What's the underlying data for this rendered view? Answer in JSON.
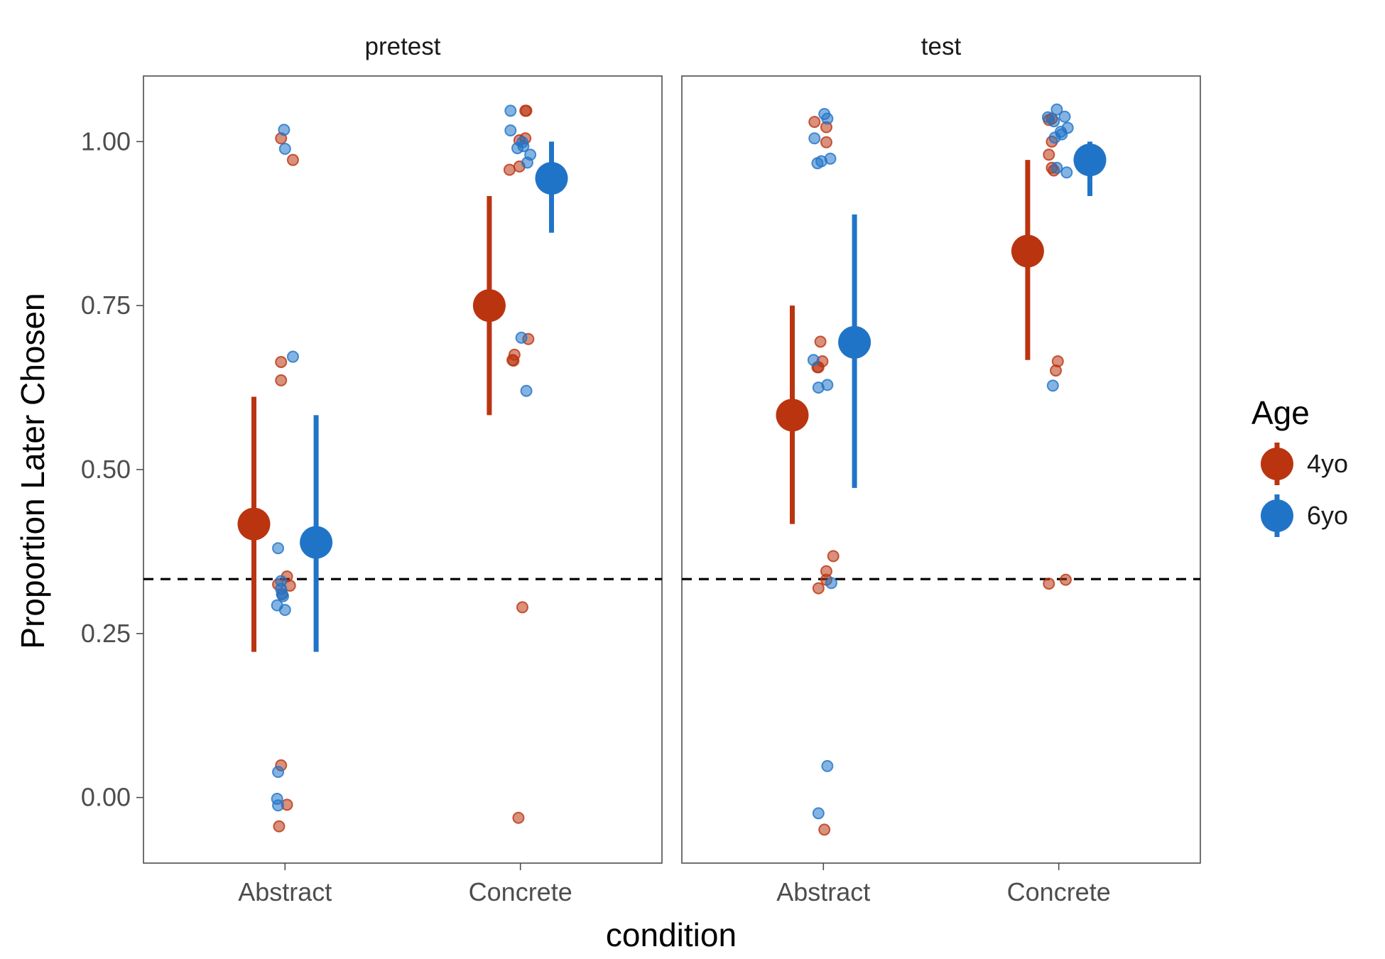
{
  "chart_data": {
    "type": "scatter",
    "xlabel": "condition",
    "ylabel": "Proportion Later Chosen",
    "ylim": [
      -0.1,
      1.1
    ],
    "y_ticks": [
      "0.00",
      "0.25",
      "0.50",
      "0.75",
      "1.00"
    ],
    "categories": [
      "Abstract",
      "Concrete"
    ],
    "facets": [
      "pretest",
      "test"
    ],
    "reference_line": {
      "y": 0.333,
      "style": "dashed"
    },
    "legend": {
      "title": "Age",
      "position": "right"
    },
    "grid": false,
    "series": [
      {
        "name": "4yo",
        "color": "#BA3410",
        "summary": [
          {
            "facet": "pretest",
            "condition": "Abstract",
            "mean": 0.417,
            "lo": 0.222,
            "hi": 0.611
          },
          {
            "facet": "pretest",
            "condition": "Concrete",
            "mean": 0.75,
            "lo": 0.583,
            "hi": 0.917
          },
          {
            "facet": "test",
            "condition": "Abstract",
            "mean": 0.583,
            "lo": 0.417,
            "hi": 0.75
          },
          {
            "facet": "test",
            "condition": "Concrete",
            "mean": 0.833,
            "lo": 0.667,
            "hi": 0.972
          }
        ],
        "points": [
          {
            "facet": "pretest",
            "condition": "Abstract",
            "jitter": -0.04,
            "y": 1.005
          },
          {
            "facet": "pretest",
            "condition": "Abstract",
            "jitter": 0.08,
            "y": 0.972
          },
          {
            "facet": "pretest",
            "condition": "Abstract",
            "jitter": -0.04,
            "y": 0.664
          },
          {
            "facet": "pretest",
            "condition": "Abstract",
            "jitter": -0.04,
            "y": 0.636
          },
          {
            "facet": "pretest",
            "condition": "Abstract",
            "jitter": 0.02,
            "y": 0.337
          },
          {
            "facet": "pretest",
            "condition": "Abstract",
            "jitter": -0.07,
            "y": 0.325
          },
          {
            "facet": "pretest",
            "condition": "Abstract",
            "jitter": 0.05,
            "y": 0.323
          },
          {
            "facet": "pretest",
            "condition": "Abstract",
            "jitter": -0.03,
            "y": 0.31
          },
          {
            "facet": "pretest",
            "condition": "Abstract",
            "jitter": -0.04,
            "y": 0.049
          },
          {
            "facet": "pretest",
            "condition": "Abstract",
            "jitter": 0.02,
            "y": -0.011
          },
          {
            "facet": "pretest",
            "condition": "Abstract",
            "jitter": -0.06,
            "y": -0.044
          },
          {
            "facet": "pretest",
            "condition": "Concrete",
            "jitter": 0.06,
            "y": 1.047
          },
          {
            "facet": "pretest",
            "condition": "Concrete",
            "jitter": 0.05,
            "y": 1.047
          },
          {
            "facet": "pretest",
            "condition": "Concrete",
            "jitter": 0.05,
            "y": 1.005
          },
          {
            "facet": "pretest",
            "condition": "Concrete",
            "jitter": -0.01,
            "y": 1.002
          },
          {
            "facet": "pretest",
            "condition": "Concrete",
            "jitter": -0.01,
            "y": 0.962
          },
          {
            "facet": "pretest",
            "condition": "Concrete",
            "jitter": -0.11,
            "y": 0.957
          },
          {
            "facet": "pretest",
            "condition": "Concrete",
            "jitter": 0.08,
            "y": 0.699
          },
          {
            "facet": "pretest",
            "condition": "Concrete",
            "jitter": -0.06,
            "y": 0.675
          },
          {
            "facet": "pretest",
            "condition": "Concrete",
            "jitter": -0.08,
            "y": 0.667
          },
          {
            "facet": "pretest",
            "condition": "Concrete",
            "jitter": -0.07,
            "y": 0.666
          },
          {
            "facet": "pretest",
            "condition": "Concrete",
            "jitter": 0.02,
            "y": 0.29
          },
          {
            "facet": "pretest",
            "condition": "Concrete",
            "jitter": -0.02,
            "y": -0.031
          },
          {
            "facet": "test",
            "condition": "Abstract",
            "jitter": -0.09,
            "y": 1.03
          },
          {
            "facet": "test",
            "condition": "Abstract",
            "jitter": 0.03,
            "y": 1.022
          },
          {
            "facet": "test",
            "condition": "Abstract",
            "jitter": 0.03,
            "y": 0.999
          },
          {
            "facet": "test",
            "condition": "Abstract",
            "jitter": -0.03,
            "y": 0.695
          },
          {
            "facet": "test",
            "condition": "Abstract",
            "jitter": -0.01,
            "y": 0.665
          },
          {
            "facet": "test",
            "condition": "Abstract",
            "jitter": -0.06,
            "y": 0.656
          },
          {
            "facet": "test",
            "condition": "Abstract",
            "jitter": -0.05,
            "y": 0.656
          },
          {
            "facet": "test",
            "condition": "Abstract",
            "jitter": 0.1,
            "y": 0.368
          },
          {
            "facet": "test",
            "condition": "Abstract",
            "jitter": 0.03,
            "y": 0.345
          },
          {
            "facet": "test",
            "condition": "Abstract",
            "jitter": 0.03,
            "y": 0.332
          },
          {
            "facet": "test",
            "condition": "Abstract",
            "jitter": -0.05,
            "y": 0.319
          },
          {
            "facet": "test",
            "condition": "Abstract",
            "jitter": 0.01,
            "y": -0.049
          },
          {
            "facet": "test",
            "condition": "Concrete",
            "jitter": -0.07,
            "y": 1.035
          },
          {
            "facet": "test",
            "condition": "Concrete",
            "jitter": -0.1,
            "y": 1.033
          },
          {
            "facet": "test",
            "condition": "Concrete",
            "jitter": -0.07,
            "y": 1.0
          },
          {
            "facet": "test",
            "condition": "Concrete",
            "jitter": -0.1,
            "y": 0.98
          },
          {
            "facet": "test",
            "condition": "Concrete",
            "jitter": -0.07,
            "y": 0.96
          },
          {
            "facet": "test",
            "condition": "Concrete",
            "jitter": -0.05,
            "y": 0.956
          },
          {
            "facet": "test",
            "condition": "Concrete",
            "jitter": -0.01,
            "y": 0.665
          },
          {
            "facet": "test",
            "condition": "Concrete",
            "jitter": -0.03,
            "y": 0.651
          },
          {
            "facet": "test",
            "condition": "Concrete",
            "jitter": -0.1,
            "y": 0.326
          },
          {
            "facet": "test",
            "condition": "Concrete",
            "jitter": 0.07,
            "y": 0.332
          }
        ]
      },
      {
        "name": "6yo",
        "color": "#2074C8",
        "summary": [
          {
            "facet": "pretest",
            "condition": "Abstract",
            "mean": 0.389,
            "lo": 0.222,
            "hi": 0.583
          },
          {
            "facet": "pretest",
            "condition": "Concrete",
            "mean": 0.944,
            "lo": 0.861,
            "hi": 1.0
          },
          {
            "facet": "test",
            "condition": "Abstract",
            "mean": 0.694,
            "lo": 0.472,
            "hi": 0.889
          },
          {
            "facet": "test",
            "condition": "Concrete",
            "mean": 0.972,
            "lo": 0.917,
            "hi": 1.0
          }
        ],
        "points": [
          {
            "facet": "pretest",
            "condition": "Abstract",
            "jitter": -0.01,
            "y": 1.018
          },
          {
            "facet": "pretest",
            "condition": "Abstract",
            "jitter": 0.0,
            "y": 0.989
          },
          {
            "facet": "pretest",
            "condition": "Abstract",
            "jitter": 0.08,
            "y": 0.672
          },
          {
            "facet": "pretest",
            "condition": "Abstract",
            "jitter": -0.07,
            "y": 0.38
          },
          {
            "facet": "pretest",
            "condition": "Abstract",
            "jitter": -0.04,
            "y": 0.33
          },
          {
            "facet": "pretest",
            "condition": "Abstract",
            "jitter": -0.04,
            "y": 0.318
          },
          {
            "facet": "pretest",
            "condition": "Abstract",
            "jitter": -0.03,
            "y": 0.31
          },
          {
            "facet": "pretest",
            "condition": "Abstract",
            "jitter": -0.02,
            "y": 0.307
          },
          {
            "facet": "pretest",
            "condition": "Abstract",
            "jitter": -0.08,
            "y": 0.293
          },
          {
            "facet": "pretest",
            "condition": "Abstract",
            "jitter": 0.0,
            "y": 0.286
          },
          {
            "facet": "pretest",
            "condition": "Abstract",
            "jitter": -0.07,
            "y": 0.039
          },
          {
            "facet": "pretest",
            "condition": "Abstract",
            "jitter": -0.08,
            "y": -0.002
          },
          {
            "facet": "pretest",
            "condition": "Abstract",
            "jitter": -0.07,
            "y": -0.012
          },
          {
            "facet": "pretest",
            "condition": "Concrete",
            "jitter": -0.1,
            "y": 1.047
          },
          {
            "facet": "pretest",
            "condition": "Concrete",
            "jitter": -0.1,
            "y": 1.017
          },
          {
            "facet": "pretest",
            "condition": "Concrete",
            "jitter": 0.02,
            "y": 0.999
          },
          {
            "facet": "pretest",
            "condition": "Concrete",
            "jitter": 0.03,
            "y": 0.993
          },
          {
            "facet": "pretest",
            "condition": "Concrete",
            "jitter": -0.03,
            "y": 0.99
          },
          {
            "facet": "pretest",
            "condition": "Concrete",
            "jitter": 0.1,
            "y": 0.98
          },
          {
            "facet": "pretest",
            "condition": "Concrete",
            "jitter": 0.07,
            "y": 0.968
          },
          {
            "facet": "pretest",
            "condition": "Concrete",
            "jitter": 0.01,
            "y": 0.701
          },
          {
            "facet": "pretest",
            "condition": "Concrete",
            "jitter": 0.06,
            "y": 0.62
          },
          {
            "facet": "test",
            "condition": "Abstract",
            "jitter": 0.01,
            "y": 1.042
          },
          {
            "facet": "test",
            "condition": "Abstract",
            "jitter": 0.04,
            "y": 1.035
          },
          {
            "facet": "test",
            "condition": "Abstract",
            "jitter": -0.09,
            "y": 1.005
          },
          {
            "facet": "test",
            "condition": "Abstract",
            "jitter": 0.07,
            "y": 0.974
          },
          {
            "facet": "test",
            "condition": "Abstract",
            "jitter": -0.02,
            "y": 0.97
          },
          {
            "facet": "test",
            "condition": "Abstract",
            "jitter": -0.06,
            "y": 0.967
          },
          {
            "facet": "test",
            "condition": "Abstract",
            "jitter": -0.1,
            "y": 0.667
          },
          {
            "facet": "test",
            "condition": "Abstract",
            "jitter": 0.04,
            "y": 0.629
          },
          {
            "facet": "test",
            "condition": "Abstract",
            "jitter": -0.05,
            "y": 0.625
          },
          {
            "facet": "test",
            "condition": "Abstract",
            "jitter": 0.08,
            "y": 0.327
          },
          {
            "facet": "test",
            "condition": "Abstract",
            "jitter": 0.04,
            "y": 0.048
          },
          {
            "facet": "test",
            "condition": "Abstract",
            "jitter": -0.05,
            "y": -0.024
          },
          {
            "facet": "test",
            "condition": "Concrete",
            "jitter": -0.02,
            "y": 1.049
          },
          {
            "facet": "test",
            "condition": "Concrete",
            "jitter": 0.06,
            "y": 1.038
          },
          {
            "facet": "test",
            "condition": "Concrete",
            "jitter": -0.11,
            "y": 1.037
          },
          {
            "facet": "test",
            "condition": "Concrete",
            "jitter": -0.05,
            "y": 1.031
          },
          {
            "facet": "test",
            "condition": "Concrete",
            "jitter": 0.09,
            "y": 1.021
          },
          {
            "facet": "test",
            "condition": "Concrete",
            "jitter": 0.02,
            "y": 1.015
          },
          {
            "facet": "test",
            "condition": "Concrete",
            "jitter": 0.03,
            "y": 1.011
          },
          {
            "facet": "test",
            "condition": "Concrete",
            "jitter": -0.04,
            "y": 1.006
          },
          {
            "facet": "test",
            "condition": "Concrete",
            "jitter": -0.02,
            "y": 0.96
          },
          {
            "facet": "test",
            "condition": "Concrete",
            "jitter": 0.08,
            "y": 0.953
          },
          {
            "facet": "test",
            "condition": "Concrete",
            "jitter": -0.06,
            "y": 0.628
          }
        ]
      }
    ]
  }
}
